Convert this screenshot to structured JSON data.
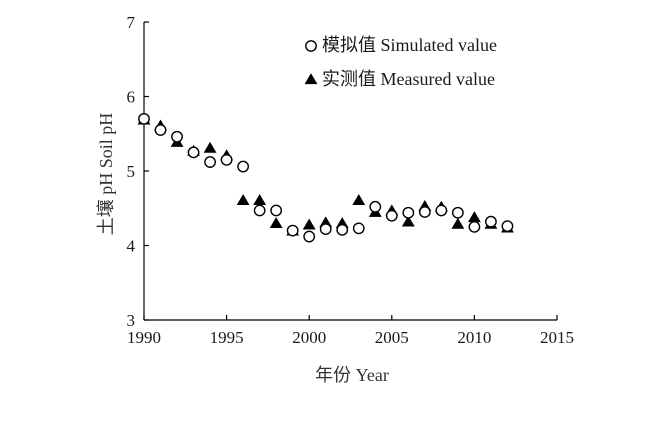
{
  "chart_data": {
    "type": "scatter",
    "title": "",
    "xlabel": "年份 Year",
    "ylabel": "土壤 pH Soil pH",
    "xlim": [
      1990,
      2015
    ],
    "ylim": [
      3,
      7
    ],
    "xticks": [
      1990,
      1995,
      2000,
      2005,
      2010,
      2015
    ],
    "yticks": [
      3,
      4,
      5,
      6,
      7
    ],
    "x_tick_labels": [
      "1990",
      "1995",
      "2000",
      "2005",
      "2010",
      "2015"
    ],
    "y_tick_labels": [
      "3",
      "4",
      "5",
      "6",
      "7"
    ],
    "grid": false,
    "legend_position": "top-right",
    "series": [
      {
        "name": "模拟值 Simulated value",
        "marker": "open-circle",
        "color": "#000000",
        "x": [
          1990,
          1991,
          1992,
          1993,
          1994,
          1995,
          1996,
          1997,
          1998,
          1999,
          2000,
          2001,
          2002,
          2003,
          2004,
          2005,
          2006,
          2007,
          2008,
          2009,
          2010,
          2011,
          2012
        ],
        "y": [
          5.7,
          5.55,
          5.46,
          5.25,
          5.12,
          5.15,
          5.06,
          4.47,
          4.47,
          4.2,
          4.12,
          4.22,
          4.21,
          4.23,
          4.52,
          4.4,
          4.44,
          4.45,
          4.47,
          4.44,
          4.25,
          4.32,
          4.26
        ]
      },
      {
        "name": "实测值 Measured value",
        "marker": "filled-triangle",
        "color": "#000000",
        "x": [
          1990,
          1991,
          1992,
          1993,
          1994,
          1995,
          1996,
          1997,
          1998,
          1999,
          2000,
          2001,
          2002,
          2003,
          2004,
          2005,
          2006,
          2007,
          2008,
          2009,
          2010,
          2011,
          2012
        ],
        "y": [
          5.68,
          5.6,
          5.38,
          5.26,
          5.3,
          5.2,
          4.6,
          4.6,
          4.29,
          4.19,
          4.27,
          4.3,
          4.29,
          4.6,
          4.44,
          4.46,
          4.31,
          4.52,
          4.51,
          4.28,
          4.37,
          4.28,
          4.23
        ]
      }
    ]
  }
}
